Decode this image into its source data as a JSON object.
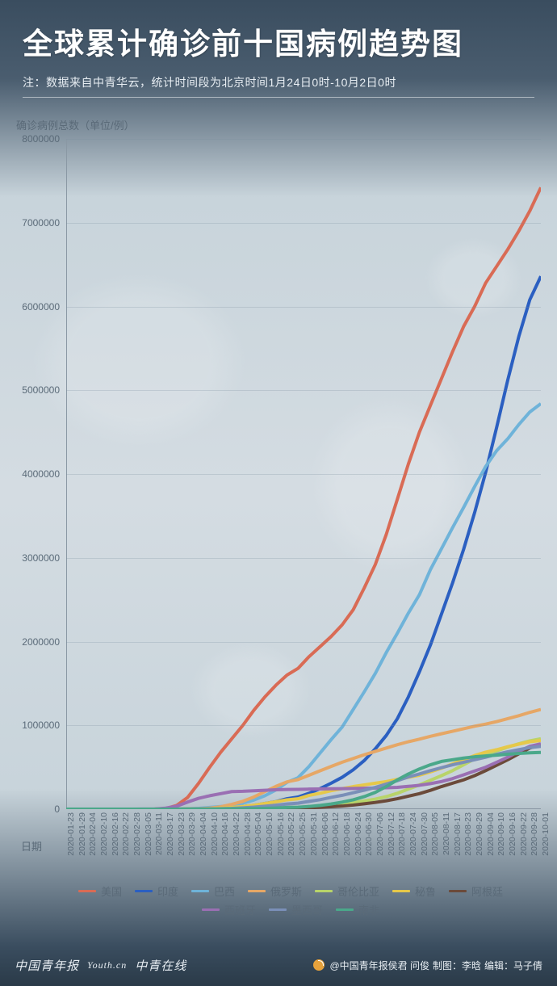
{
  "header": {
    "title": "全球累计确诊前十国病例趋势图",
    "subtitle": "注：数据来自中青华云，统计时间段为北京时间1月24日0时-10月2日0时"
  },
  "chart": {
    "type": "line",
    "y_axis_label": "确诊病例总数（单位/例）",
    "x_axis_label": "日期",
    "ylim": [
      0,
      8000000
    ],
    "ytick_step": 1000000,
    "y_ticks": [
      "0",
      "1000000",
      "2000000",
      "3000000",
      "4000000",
      "5000000",
      "6000000",
      "7000000",
      "8000000"
    ],
    "x_dates": [
      "2020-01-23",
      "2020-01-29",
      "2020-02-04",
      "2020-02-10",
      "2020-02-16",
      "2020-02-22",
      "2020-02-28",
      "2020-03-05",
      "2020-03-11",
      "2020-03-17",
      "2020-03-23",
      "2020-03-29",
      "2020-04-04",
      "2020-04-10",
      "2020-04-16",
      "2020-04-22",
      "2020-04-28",
      "2020-05-04",
      "2020-05-10",
      "2020-05-16",
      "2020-05-22",
      "2020-05-25",
      "2020-05-31",
      "2020-06-06",
      "2020-06-12",
      "2020-06-18",
      "2020-06-24",
      "2020-06-30",
      "2020-07-06",
      "2020-07-12",
      "2020-07-18",
      "2020-07-24",
      "2020-07-30",
      "2020-08-05",
      "2020-08-11",
      "2020-08-17",
      "2020-08-23",
      "2020-08-29",
      "2020-09-04",
      "2020-09-10",
      "2020-09-16",
      "2020-09-22",
      "2020-09-28",
      "2020-10-01"
    ],
    "background_color": "#d4dce2",
    "grid_color": "rgba(120,140,155,0.25)",
    "axis_color": "#8a98a4",
    "label_color": "#5a6a78",
    "label_fontsize": 13,
    "tick_fontsize": 12,
    "xtick_fontsize": 10.5,
    "line_width": 2.4,
    "series": [
      {
        "name": "美国",
        "color": "#d96b55",
        "values": [
          0,
          0,
          0,
          0,
          0,
          0,
          0,
          0,
          1000,
          6000,
          44000,
          140000,
          310000,
          500000,
          680000,
          840000,
          1000000,
          1180000,
          1340000,
          1480000,
          1600000,
          1680000,
          1820000,
          1940000,
          2060000,
          2200000,
          2380000,
          2640000,
          2920000,
          3280000,
          3700000,
          4120000,
          4500000,
          4820000,
          5140000,
          5460000,
          5760000,
          6000000,
          6280000,
          6480000,
          6680000,
          6900000,
          7140000,
          7420000
        ]
      },
      {
        "name": "印度",
        "color": "#2b5fc1",
        "values": [
          0,
          0,
          0,
          0,
          0,
          0,
          0,
          0,
          0,
          0,
          500,
          1000,
          3000,
          7000,
          13000,
          21000,
          31000,
          46000,
          67000,
          90000,
          125000,
          145000,
          190000,
          245000,
          310000,
          380000,
          470000,
          580000,
          720000,
          880000,
          1080000,
          1340000,
          1640000,
          1960000,
          2330000,
          2700000,
          3100000,
          3540000,
          4020000,
          4560000,
          5120000,
          5640000,
          6080000,
          6360000
        ]
      },
      {
        "name": "巴西",
        "color": "#6fb3d9",
        "values": [
          0,
          0,
          0,
          0,
          0,
          0,
          0,
          0,
          0,
          0,
          1500,
          4000,
          10000,
          20000,
          31000,
          46000,
          73000,
          108000,
          160000,
          230000,
          320000,
          375000,
          510000,
          670000,
          830000,
          980000,
          1190000,
          1400000,
          1620000,
          1870000,
          2100000,
          2340000,
          2560000,
          2860000,
          3110000,
          3360000,
          3600000,
          3850000,
          4090000,
          4280000,
          4420000,
          4590000,
          4740000,
          4840000
        ]
      },
      {
        "name": "俄罗斯",
        "color": "#e6a766",
        "values": [
          0,
          0,
          0,
          0,
          0,
          0,
          0,
          0,
          0,
          0,
          500,
          1500,
          4000,
          12000,
          28000,
          58000,
          94000,
          145000,
          210000,
          272000,
          326000,
          353000,
          405000,
          458000,
          510000,
          560000,
          605000,
          650000,
          690000,
          730000,
          770000,
          805000,
          835000,
          870000,
          900000,
          930000,
          960000,
          990000,
          1015000,
          1045000,
          1080000,
          1115000,
          1155000,
          1190000
        ]
      },
      {
        "name": "哥伦比亚",
        "color": "#b8d46a",
        "values": [
          0,
          0,
          0,
          0,
          0,
          0,
          0,
          0,
          0,
          0,
          200,
          700,
          1400,
          2500,
          3300,
          4400,
          5900,
          8000,
          11000,
          15000,
          19000,
          22000,
          29000,
          38000,
          47000,
          60000,
          77000,
          98000,
          120000,
          150000,
          190000,
          240000,
          290000,
          345000,
          400000,
          460000,
          530000,
          600000,
          650000,
          695000,
          740000,
          780000,
          815000,
          840000
        ]
      },
      {
        "name": "秘鲁",
        "color": "#e6c84a",
        "values": [
          0,
          0,
          0,
          0,
          0,
          0,
          0,
          0,
          0,
          0,
          300,
          900,
          1800,
          6000,
          12000,
          19000,
          31000,
          47000,
          68000,
          88000,
          111000,
          124000,
          164000,
          190000,
          220000,
          245000,
          270000,
          290000,
          310000,
          330000,
          355000,
          380000,
          405000,
          445000,
          490000,
          540000,
          590000,
          640000,
          680000,
          710000,
          745000,
          775000,
          805000,
          820000
        ]
      },
      {
        "name": "阿根廷",
        "color": "#6b4a3a",
        "values": [
          0,
          0,
          0,
          0,
          0,
          0,
          0,
          0,
          0,
          0,
          200,
          800,
          1400,
          1900,
          2600,
          3300,
          4100,
          5000,
          6000,
          7800,
          10000,
          12000,
          17000,
          22000,
          29000,
          37000,
          49000,
          64000,
          80000,
          100000,
          125000,
          155000,
          185000,
          225000,
          270000,
          310000,
          350000,
          400000,
          460000,
          525000,
          590000,
          660000,
          730000,
          770000
        ]
      },
      {
        "name": "西班牙",
        "color": "#9a6fb3",
        "values": [
          0,
          0,
          0,
          0,
          0,
          0,
          0,
          500,
          2000,
          12000,
          35000,
          85000,
          130000,
          160000,
          185000,
          210000,
          213000,
          219000,
          225000,
          231000,
          235000,
          236000,
          239000,
          241000,
          243000,
          245000,
          247000,
          249000,
          252000,
          255000,
          260000,
          272000,
          285000,
          305000,
          330000,
          365000,
          410000,
          455000,
          500000,
          560000,
          620000,
          690000,
          750000,
          780000
        ]
      },
      {
        "name": "墨西哥",
        "color": "#7a8fb8",
        "values": [
          0,
          0,
          0,
          0,
          0,
          0,
          0,
          0,
          0,
          0,
          300,
          1000,
          1900,
          3800,
          6300,
          10000,
          16000,
          24000,
          35000,
          47000,
          62000,
          71000,
          93000,
          113000,
          140000,
          165000,
          196000,
          226000,
          260000,
          300000,
          340000,
          385000,
          420000,
          460000,
          495000,
          530000,
          560000,
          590000,
          620000,
          655000,
          685000,
          710000,
          735000,
          750000
        ]
      },
      {
        "name": "南非",
        "color": "#4aa88a",
        "values": [
          0,
          0,
          0,
          0,
          0,
          0,
          0,
          0,
          0,
          0,
          400,
          1300,
          1600,
          2000,
          2600,
          3600,
          4800,
          7200,
          10000,
          14000,
          20000,
          23000,
          32000,
          45000,
          62000,
          84000,
          111000,
          150000,
          200000,
          270000,
          350000,
          420000,
          480000,
          530000,
          570000,
          590000,
          610000,
          625000,
          635000,
          645000,
          655000,
          665000,
          672000,
          677000
        ]
      }
    ]
  },
  "legend": {
    "items": [
      {
        "label": "美国",
        "color": "#d96b55"
      },
      {
        "label": "印度",
        "color": "#2b5fc1"
      },
      {
        "label": "巴西",
        "color": "#6fb3d9"
      },
      {
        "label": "俄罗斯",
        "color": "#e6a766"
      },
      {
        "label": "哥伦比亚",
        "color": "#b8d46a"
      },
      {
        "label": "秘鲁",
        "color": "#e6c84a"
      },
      {
        "label": "阿根廷",
        "color": "#6b4a3a"
      },
      {
        "label": "西班牙",
        "color": "#9a6fb3"
      },
      {
        "label": "墨西哥",
        "color": "#7a8fb8"
      },
      {
        "label": "南非",
        "color": "#4aa88a"
      }
    ]
  },
  "footer": {
    "logo1": "中国青年报",
    "logo2": "Youth.cn",
    "logo3": "中青在线",
    "credits_handle": "@中国青年报侯君 问俊",
    "credits_art": "制图：李晗",
    "credits_editor": "编辑：马子倩"
  }
}
